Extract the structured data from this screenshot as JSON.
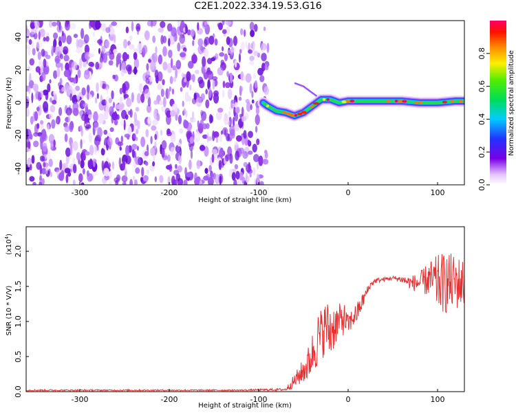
{
  "figure_title": "C2E1.2022.334.19.53.G16",
  "colors": {
    "spectrogram_purple": "#8a2be2",
    "snr_line": "#e8302e",
    "colorbar_low": "#ffffff",
    "colorbar_high": "#ff0055"
  },
  "chart_data": [
    {
      "type": "heatmap",
      "name": "spectrogram",
      "title": "",
      "xlabel": "Height of straight line (km)",
      "ylabel": "Frequency (Hz)",
      "xlim": [
        -360,
        130
      ],
      "ylim": [
        -50,
        50
      ],
      "x_ticks": [
        -300,
        -200,
        -100,
        0,
        100
      ],
      "x_tick_labels": [
        "-300",
        "-200",
        "-100",
        "0",
        "100"
      ],
      "y_ticks": [
        -40,
        -20,
        0,
        20,
        40
      ],
      "y_tick_labels": [
        "-40",
        "-20",
        "0",
        "20",
        "40"
      ],
      "noise_region_x": [
        -360,
        -90
      ],
      "signal_track": {
        "x": [
          -95,
          -90,
          -80,
          -70,
          -60,
          -50,
          -40,
          -30,
          -20,
          -10,
          0,
          20,
          40,
          60,
          80,
          100,
          120,
          130
        ],
        "frequency": [
          0,
          -2,
          -5,
          -6,
          -8,
          -6,
          -2,
          2,
          2,
          0,
          1,
          1,
          1,
          1,
          0,
          0,
          1,
          1
        ]
      },
      "side_branch": {
        "x": [
          -60,
          -50,
          -40,
          -35
        ],
        "frequency": [
          12,
          10,
          6,
          4
        ]
      },
      "colorbar": {
        "label": "Normalized spectral amplitude",
        "range": [
          0,
          1
        ],
        "ticks": [
          0.0,
          0.2,
          0.4,
          0.6,
          0.8
        ],
        "tick_labels": [
          "0.0",
          "0.2",
          "0.4",
          "0.6",
          "0.8"
        ]
      }
    },
    {
      "type": "line",
      "name": "snr",
      "title": "",
      "xlabel": "Height of straight line (km)",
      "ylabel": "SNR (10 * V/V)",
      "scale_label": "(x10",
      "scale_exponent": "4",
      "scale_close": ")",
      "xlim": [
        -360,
        130
      ],
      "ylim": [
        0,
        2.35
      ],
      "x_ticks": [
        -300,
        -200,
        -100,
        0,
        100
      ],
      "x_tick_labels": [
        "-300",
        "-200",
        "-100",
        "0",
        "100"
      ],
      "y_ticks": [
        0.0,
        0.5,
        1.0,
        1.5,
        2.0
      ],
      "y_tick_labels": [
        "0.0",
        "0.5",
        "1.0",
        "1.5",
        "2.0"
      ],
      "series": [
        {
          "x": [
            -360,
            -300,
            -200,
            -120,
            -70,
            -60,
            -50,
            -45,
            -40,
            -35,
            -30,
            -25,
            -20,
            -15,
            -10,
            -5,
            0,
            5,
            10,
            15,
            20,
            25,
            30,
            40,
            50,
            60,
            70,
            80,
            90,
            100,
            110,
            120,
            130
          ],
          "y": [
            0.02,
            0.02,
            0.02,
            0.02,
            0.03,
            0.15,
            0.3,
            0.38,
            0.55,
            0.72,
            0.8,
            0.95,
            0.85,
            0.95,
            1.0,
            1.05,
            0.95,
            1.05,
            1.12,
            1.25,
            1.4,
            1.52,
            1.58,
            1.6,
            1.62,
            1.6,
            1.55,
            1.55,
            1.6,
            1.55,
            1.55,
            1.55,
            1.55
          ],
          "noise_amplitude": [
            0.01,
            0.01,
            0.01,
            0.01,
            0.02,
            0.1,
            0.18,
            0.25,
            0.3,
            0.4,
            0.4,
            0.35,
            0.45,
            0.3,
            0.25,
            0.25,
            0.15,
            0.15,
            0.15,
            0.12,
            0.08,
            0.05,
            0.04,
            0.03,
            0.03,
            0.05,
            0.1,
            0.15,
            0.25,
            0.4,
            0.45,
            0.4,
            0.35
          ]
        }
      ]
    }
  ]
}
